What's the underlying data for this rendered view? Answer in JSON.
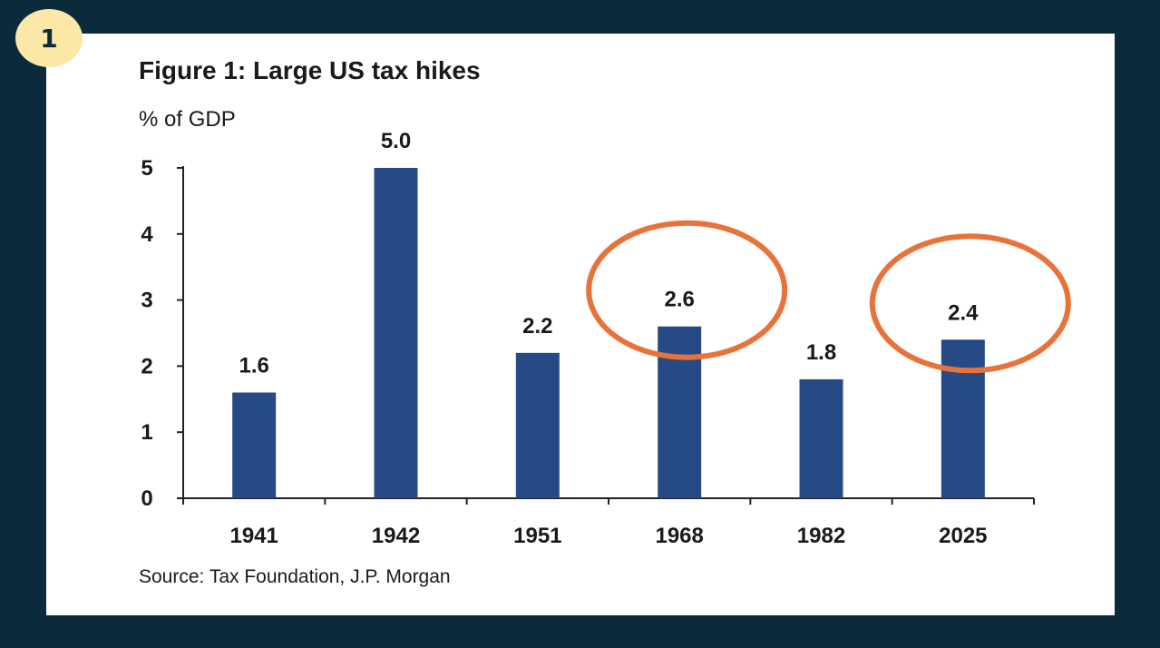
{
  "badge": {
    "number": "1"
  },
  "colors": {
    "background": "#0b2a3a",
    "badge": "#fbe7a6",
    "bar": "#264a86",
    "highlight": "#e8733a",
    "panel": "#ffffff"
  },
  "chart_data": {
    "type": "bar",
    "title": "Figure 1: Large US tax hikes",
    "ylabel": "% of GDP",
    "xlabel": "",
    "categories": [
      "1941",
      "1942",
      "1951",
      "1968",
      "1982",
      "2025"
    ],
    "values": [
      1.6,
      5.0,
      2.2,
      2.6,
      1.8,
      2.4
    ],
    "value_labels": [
      "1.6",
      "5.0",
      "2.2",
      "2.6",
      "1.8",
      "2.4"
    ],
    "ylim": [
      0,
      5
    ],
    "yticks": [
      "0",
      "1",
      "2",
      "3",
      "4",
      "5"
    ],
    "grid": false,
    "highlighted_categories": [
      "1968",
      "2025"
    ],
    "source": "Source: Tax Foundation, J.P. Morgan"
  }
}
